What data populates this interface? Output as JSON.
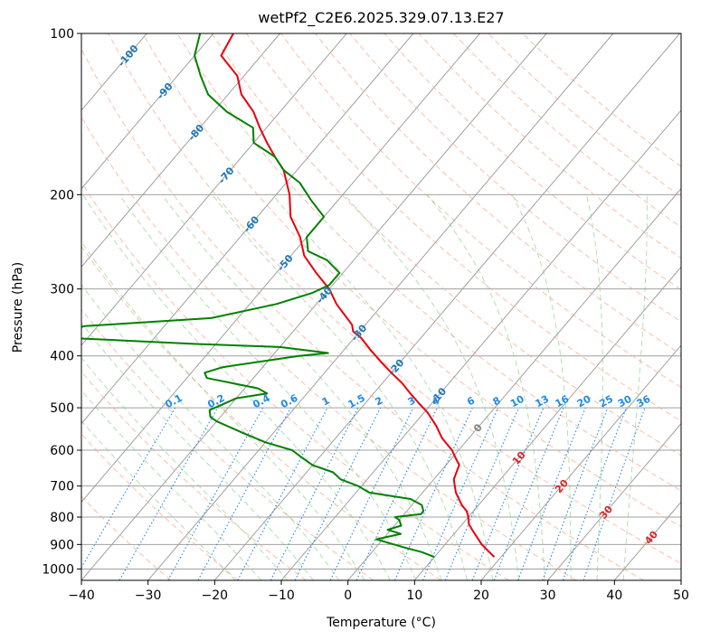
{
  "chart_data": {
    "type": "line",
    "subtype": "skew-T log-P",
    "title": "wetPf2_C2E6.2025.329.07.13.E27",
    "xlabel": "Temperature (°C)",
    "ylabel": "Pressure (hPa)",
    "xlim": [
      -40,
      50
    ],
    "ylim": [
      1050,
      100
    ],
    "y_scale": "log",
    "x_ticks": [
      "−40",
      "−30",
      "−20",
      "−10",
      "0",
      "10",
      "20",
      "30",
      "40",
      "50"
    ],
    "y_ticks": [
      "100",
      "200",
      "300",
      "400",
      "500",
      "600",
      "700",
      "800",
      "900",
      "1000"
    ],
    "grid": true,
    "colors": {
      "temperature": "#e8000b",
      "dewpoint": "#008000",
      "dry_adiabat": "#f4a582",
      "moist_adiabat": "#7fc97f",
      "mixing_ratio": "#1f8ae6",
      "isotherm_grid": "#a0a0a0",
      "label_blue": "#1f77b4",
      "label_red": "#d62728"
    },
    "series": [
      {
        "name": "temperature",
        "p": [
          950,
          900,
          850,
          825,
          800,
          780,
          760,
          720,
          700,
          680,
          660,
          640,
          620,
          600,
          570,
          540,
          510,
          490,
          470,
          450,
          430,
          410,
          390,
          370,
          360,
          350,
          320,
          300,
          280,
          260,
          240,
          220,
          200,
          180,
          170,
          160,
          150,
          140,
          130,
          120,
          110,
          100
        ],
        "t": [
          19.0,
          15.5,
          12.5,
          11.0,
          10.0,
          9.0,
          7.5,
          5.0,
          4.0,
          3.0,
          2.5,
          2.0,
          0.5,
          -1.0,
          -4.0,
          -6.5,
          -9.5,
          -12.0,
          -14.5,
          -17.0,
          -20.0,
          -23.0,
          -26.0,
          -29.0,
          -31.0,
          -32.0,
          -37.0,
          -40.0,
          -44.0,
          -48.0,
          -51.0,
          -55.0,
          -58.0,
          -62.0,
          -65.0,
          -68.0,
          -71.0,
          -74.0,
          -78.0,
          -81.0,
          -86.0,
          -87.0
        ]
      },
      {
        "name": "dewpoint",
        "p": [
          950,
          930,
          910,
          880,
          860,
          845,
          830,
          810,
          800,
          790,
          780,
          760,
          740,
          720,
          700,
          680,
          660,
          640,
          620,
          600,
          580,
          560,
          530,
          520,
          505,
          480,
          470,
          460,
          440,
          430,
          420,
          400,
          395,
          385,
          380,
          370,
          362,
          352,
          340,
          320,
          305,
          295,
          280,
          265,
          255,
          240,
          220,
          205,
          190,
          180,
          170,
          160,
          150,
          140,
          130,
          120,
          110,
          100
        ],
        "t": [
          10.0,
          7.5,
          4.0,
          -1.0,
          2.0,
          -0.5,
          1.0,
          0.0,
          -1.0,
          2.5,
          2.5,
          1.5,
          -1.0,
          -8.0,
          -10.5,
          -14.0,
          -16.0,
          -20.0,
          -22.5,
          -25.0,
          -30.0,
          -34.0,
          -40.0,
          -41.5,
          -42.5,
          -40.0,
          -36.0,
          -38.0,
          -47.0,
          -48.0,
          -46.0,
          -36.0,
          -32.0,
          -40.0,
          -53.0,
          -73.5,
          -74.5,
          -72.0,
          -54.0,
          -46.0,
          -42.0,
          -40.5,
          -40.5,
          -44.0,
          -48.0,
          -50.0,
          -50.0,
          -54.0,
          -58.0,
          -62.0,
          -65.0,
          -70.0,
          -72.0,
          -78.0,
          -83.0,
          -86.5,
          -90.0,
          -92.0
        ]
      }
    ],
    "isotherm_labels": [
      {
        "text": "-100",
        "t": -100,
        "p": 110
      },
      {
        "text": "-90",
        "t": -90,
        "p": 128
      },
      {
        "text": "-80",
        "t": -80,
        "p": 153
      },
      {
        "text": "-70",
        "t": -70,
        "p": 184
      },
      {
        "text": "-60",
        "t": -60,
        "p": 227
      },
      {
        "text": "-50",
        "t": -50,
        "p": 268
      },
      {
        "text": "-40",
        "t": -40,
        "p": 308
      },
      {
        "text": "-30",
        "t": -30,
        "p": 362
      },
      {
        "text": "-20",
        "t": -20,
        "p": 420
      },
      {
        "text": "-10",
        "t": -10,
        "p": 475
      },
      {
        "text": "0",
        "t": 0,
        "p": 545,
        "color": "gray"
      },
      {
        "text": "10",
        "t": 10,
        "p": 620,
        "color": "red"
      },
      {
        "text": "20",
        "t": 20,
        "p": 700,
        "color": "red"
      },
      {
        "text": "30",
        "t": 30,
        "p": 783,
        "color": "red"
      },
      {
        "text": "40",
        "t": 40,
        "p": 873,
        "color": "red"
      }
    ],
    "mixing_ratio_labels": [
      "0.1",
      "0.2",
      "0.4",
      "0.6",
      "1",
      "1.5",
      "2",
      "3",
      "4",
      "6",
      "8",
      "10",
      "13",
      "16",
      "20",
      "25",
      "30",
      "36"
    ]
  }
}
